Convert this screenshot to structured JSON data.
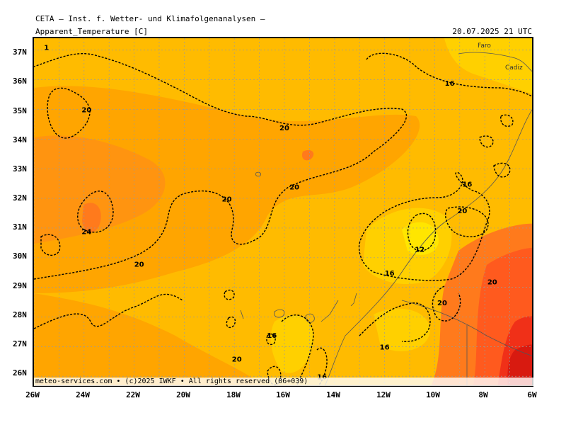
{
  "header": {
    "title": "CETA — Inst. f. Wetter- und Klimafolgenanalysen —",
    "parameter": "Apparent_Temperature [C]",
    "valid_time": "20.07.2025 21 UTC"
  },
  "footer": {
    "copyright": "meteo-services.com • (c)2025 IWKF • All rights reserved (06+039)"
  },
  "axes": {
    "lat_labels": [
      "37N",
      "36N",
      "35N",
      "34N",
      "33N",
      "32N",
      "31N",
      "30N",
      "29N",
      "28N",
      "27N",
      "26N"
    ],
    "lon_labels": [
      "26W",
      "24W",
      "22W",
      "20W",
      "18W",
      "16W",
      "14W",
      "12W",
      "10W",
      "8W",
      "6W"
    ]
  },
  "cities": {
    "faro": "Faro",
    "cadiz": "Cadiz"
  },
  "contour_labels": [
    {
      "text": "1",
      "lon": -25.5,
      "lat": 37.0
    },
    {
      "text": "20",
      "lon": -23.9,
      "lat": 34.9
    },
    {
      "text": "24",
      "lon": -23.9,
      "lat": 30.8
    },
    {
      "text": "20",
      "lon": -21.8,
      "lat": 29.7
    },
    {
      "text": "20",
      "lon": -18.3,
      "lat": 31.9
    },
    {
      "text": "20",
      "lon": -16.0,
      "lat": 34.3
    },
    {
      "text": "20",
      "lon": -15.6,
      "lat": 32.3
    },
    {
      "text": "16",
      "lon": -9.4,
      "lat": 35.8
    },
    {
      "text": "16",
      "lon": -8.7,
      "lat": 32.4
    },
    {
      "text": "20",
      "lon": -8.9,
      "lat": 31.5
    },
    {
      "text": "12",
      "lon": -10.6,
      "lat": 30.2
    },
    {
      "text": "16",
      "lon": -11.8,
      "lat": 29.4
    },
    {
      "text": "20",
      "lon": -7.7,
      "lat": 29.1
    },
    {
      "text": "20",
      "lon": -9.7,
      "lat": 28.4
    },
    {
      "text": "16",
      "lon": -16.5,
      "lat": 27.3
    },
    {
      "text": "16",
      "lon": -12.0,
      "lat": 26.9
    },
    {
      "text": "20",
      "lon": -17.9,
      "lat": 26.5
    },
    {
      "text": "16",
      "lon": -14.5,
      "lat": 25.9
    }
  ],
  "colors": {
    "t10": "#ffe600",
    "t14": "#ffd000",
    "t18": "#ffbb00",
    "t20": "#ffa500",
    "t22": "#ff9410",
    "t26": "#ff7a1c",
    "t30": "#ff5a1e",
    "t34": "#f03018",
    "grid": "#9a9a9a",
    "contour": "#000000",
    "coast": "#555555"
  }
}
